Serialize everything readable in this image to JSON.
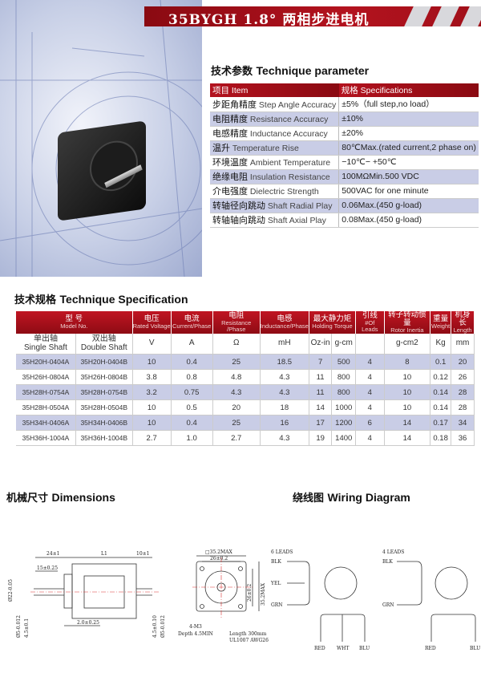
{
  "header": {
    "title": "35BYGH 1.8°  两相步进电机"
  },
  "colors": {
    "brand_red": "#a0101a",
    "row_alt": "#c9cde6"
  },
  "params": {
    "title_zh": "技术参数",
    "title_en": "Technique parameter",
    "head": [
      "项目  Item",
      "规格  Specifications"
    ],
    "rows": [
      {
        "zh": "步距角精度",
        "en": "Step Angle Accuracy",
        "val": "±5%（full step,no load）"
      },
      {
        "zh": "电阻精度",
        "en": "Resistance Accuracy",
        "val": "±10%"
      },
      {
        "zh": "电感精度",
        "en": "Inductance Accuracy",
        "val": "±20%"
      },
      {
        "zh": "温升",
        "en": "Temperature Rise",
        "val": "80℃Max.(rated current,2 phase on)"
      },
      {
        "zh": "环境温度",
        "en": "Ambient Temperature",
        "val": "−10℃− +50℃"
      },
      {
        "zh": "绝缘电阻",
        "en": "Insulation Resistance",
        "val": "100MΩMin.500 VDC"
      },
      {
        "zh": "介电强度",
        "en": "Dielectric Strength",
        "val": "500VAC for one minute"
      },
      {
        "zh": "转轴径向跳动",
        "en": "Shaft Radial Play",
        "val": "0.06Max.(450 g-load)"
      },
      {
        "zh": "转轴轴向跳动",
        "en": "Shaft Axial Play",
        "val": "0.08Max.(450 g-load)"
      }
    ]
  },
  "spec": {
    "title_zh": "技术规格",
    "title_en": "Technique Specification",
    "head": [
      {
        "zh": "型    号",
        "en": "Model No."
      },
      {
        "zh": "电压",
        "en": "Rated Voltage"
      },
      {
        "zh": "电流",
        "en": "Current/Phase"
      },
      {
        "zh": "电阻",
        "en": "Resistance /Phase"
      },
      {
        "zh": "电感",
        "en": "Inductance/Phase"
      },
      {
        "zh": "最大静力矩",
        "en": "Holding Torque"
      },
      {
        "zh": "引线",
        "en": "#Of Leads"
      },
      {
        "zh": "转子转动惯量",
        "en": "Rotor Inertia"
      },
      {
        "zh": "重量",
        "en": "Weight"
      },
      {
        "zh": "机身长",
        "en": "Length"
      }
    ],
    "units": [
      "单出轴\nSingle Shaft",
      "双出轴\nDouble Shaft",
      "V",
      "A",
      "Ω",
      "mH",
      "Oz-in",
      "g-cm",
      "",
      "g-cm2",
      "Kg",
      "mm"
    ],
    "rows": [
      [
        "35H20H-0404A",
        "35H20H-0404B",
        "10",
        "0.4",
        "25",
        "18.5",
        "7",
        "500",
        "4",
        "8",
        "0.1",
        "20"
      ],
      [
        "35H26H-0804A",
        "35H26H-0804B",
        "3.8",
        "0.8",
        "4.8",
        "4.3",
        "11",
        "800",
        "4",
        "10",
        "0.12",
        "26"
      ],
      [
        "35H28H-0754A",
        "35H28H-0754B",
        "3.2",
        "0.75",
        "4.3",
        "4.3",
        "11",
        "800",
        "4",
        "10",
        "0.14",
        "28"
      ],
      [
        "35H28H-0504A",
        "35H28H-0504B",
        "10",
        "0.5",
        "20",
        "18",
        "14",
        "1000",
        "4",
        "10",
        "0.14",
        "28"
      ],
      [
        "35H34H-0406A",
        "35H34H-0406B",
        "10",
        "0.4",
        "25",
        "16",
        "17",
        "1200",
        "6",
        "14",
        "0.17",
        "34"
      ],
      [
        "35H36H-1004A",
        "35H36H-1004B",
        "2.7",
        "1.0",
        "2.7",
        "4.3",
        "19",
        "1400",
        "4",
        "14",
        "0.18",
        "36"
      ]
    ]
  },
  "dimensions": {
    "title_zh": "机械尺寸",
    "title_en": "Dimensions",
    "labels": {
      "a": "24±1",
      "l1": "L1",
      "b": "10±1",
      "c": "15±0.25",
      "d": "Ø22-0.05",
      "e": "Ø5-0.012",
      "f": "4.5±0.1",
      "g": "2.0±0.25",
      "h": "4.5±0.10",
      "i": "Ø5-0.012",
      "sq": "□35.2MAX",
      "hole": "26±0.2",
      "v1": "26±0.2",
      "v2": "35.2MAX",
      "screw": "4-M3",
      "depth": "Depth 4.5MIN",
      "len": "Length 300mm",
      "wire": "UL1007 AWG26"
    }
  },
  "wiring": {
    "title_zh": "绕线图",
    "title_en": "Wiring Diagram",
    "six": {
      "label": "6 LEADS",
      "blk": "BLK",
      "yel": "YEL",
      "grn": "GRN",
      "red": "RED",
      "wht": "WHT",
      "blu": "BLU"
    },
    "four": {
      "label": "4 LEADS",
      "blk": "BLK",
      "grn": "GRN",
      "red": "RED",
      "blu": "BLU"
    }
  }
}
